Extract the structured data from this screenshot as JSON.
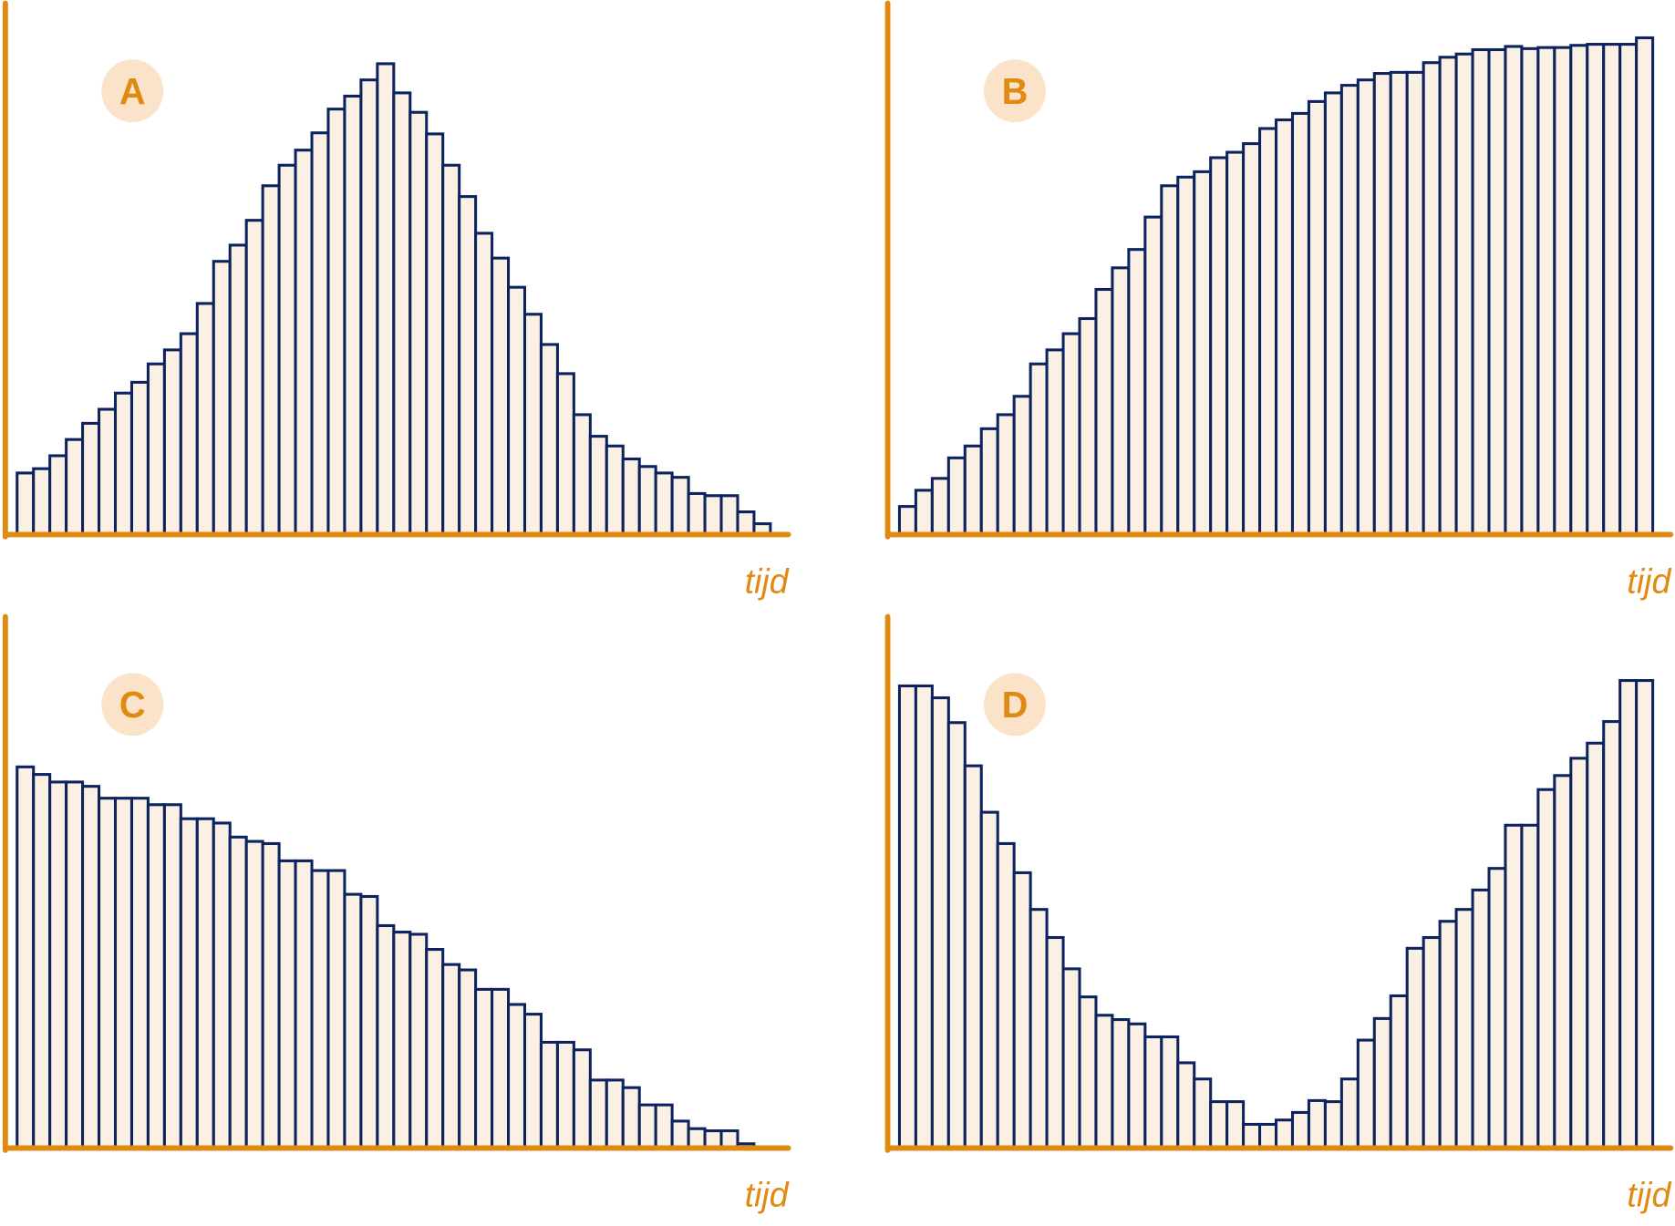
{
  "chart_data": [
    {
      "type": "bar",
      "title": "A",
      "x_label": "tijd",
      "ylim": [
        0,
        490
      ],
      "color": "#fbf0e4",
      "edge_color": "#0d2360",
      "axis_color": "#e08a12",
      "values": [
        57,
        61,
        73,
        88,
        103,
        116,
        131,
        141,
        158,
        171,
        186,
        214,
        253,
        268,
        291,
        323,
        342,
        356,
        372,
        394,
        406,
        421,
        436,
        409,
        391,
        371,
        342,
        313,
        279,
        256,
        229,
        204,
        176,
        149,
        111,
        91,
        82,
        70,
        63,
        57,
        53,
        38,
        36,
        36,
        21,
        10
      ]
    },
    {
      "type": "bar",
      "title": "B",
      "x_label": "tijd",
      "ylim": [
        0,
        490
      ],
      "color": "#fbf0e4",
      "edge_color": "#0d2360",
      "axis_color": "#e08a12",
      "values": [
        26,
        41,
        52,
        71,
        82,
        98,
        111,
        128,
        158,
        171,
        186,
        200,
        227,
        247,
        264,
        294,
        323,
        331,
        336,
        349,
        354,
        362,
        376,
        384,
        390,
        401,
        409,
        416,
        421,
        427,
        428,
        428,
        437,
        442,
        445,
        449,
        449,
        452,
        450,
        451,
        451,
        453,
        454,
        454,
        454,
        460
      ]
    },
    {
      "type": "bar",
      "title": "C",
      "x_label": "tijd",
      "ylim": [
        0,
        490
      ],
      "color": "#fbf0e4",
      "edge_color": "#0d2360",
      "axis_color": "#e08a12",
      "values": [
        353,
        346,
        339,
        339,
        335,
        324,
        324,
        324,
        318,
        318,
        305,
        305,
        301,
        288,
        284,
        282,
        266,
        266,
        257,
        257,
        235,
        233,
        206,
        200,
        198,
        184,
        170,
        165,
        147,
        147,
        133,
        124,
        98,
        98,
        91,
        63,
        63,
        56,
        40,
        40,
        25,
        18,
        16,
        16,
        4
      ]
    },
    {
      "type": "bar",
      "title": "D",
      "x_label": "tijd",
      "ylim": [
        0,
        490
      ],
      "color": "#fbf0e4",
      "edge_color": "#0d2360",
      "axis_color": "#e08a12",
      "values": [
        428,
        428,
        417,
        394,
        354,
        311,
        282,
        255,
        221,
        195,
        166,
        140,
        123,
        119,
        115,
        103,
        103,
        79,
        64,
        43,
        43,
        22,
        22,
        26,
        33,
        44,
        43,
        64,
        100,
        120,
        141,
        185,
        195,
        210,
        221,
        239,
        259,
        299,
        299,
        332,
        345,
        361,
        375,
        395,
        433,
        433
      ]
    }
  ]
}
